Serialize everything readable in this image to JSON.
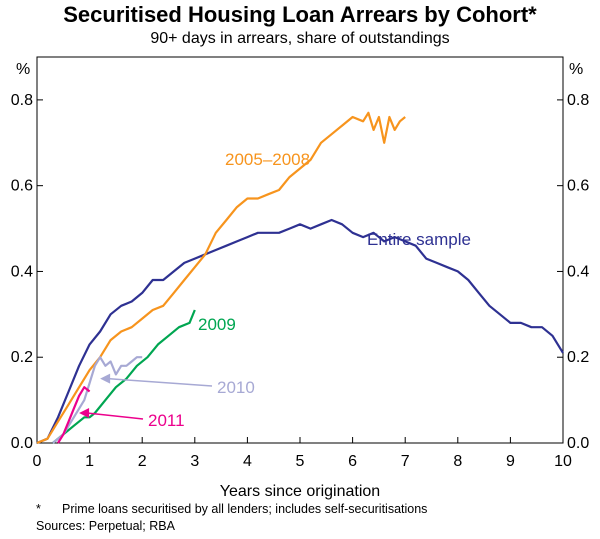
{
  "title": "Securitised Housing Loan Arrears by Cohort*",
  "subtitle": "90+ days in arrears, share of outstandings",
  "footnote": {
    "marker": "*",
    "text": "Prime loans securitised by all lenders; includes self-securitisations"
  },
  "sources": "Sources: Perpetual; RBA",
  "colors": {
    "cohort_2005_2008": "#f7941d",
    "entire_sample": "#2e3192",
    "cohort_2009": "#00a651",
    "cohort_2010": "#a7a9d4",
    "cohort_2011": "#ec008c"
  },
  "chart_data": {
    "type": "line",
    "title": "Securitised Housing Loan Arrears by Cohort*",
    "xlabel": "Years since origination",
    "ylabel_left": "%",
    "ylabel_right": "%",
    "xlim": [
      0,
      10
    ],
    "ylim": [
      0,
      0.9
    ],
    "xticks": [
      "0",
      "1",
      "2",
      "3",
      "4",
      "5",
      "6",
      "7",
      "8",
      "9",
      "10"
    ],
    "yticks": [
      "0.0",
      "0.2",
      "0.4",
      "0.6",
      "0.8"
    ],
    "ytick_values": [
      0,
      0.2,
      0.4,
      0.6,
      0.8
    ],
    "grid": false,
    "series": [
      {
        "name": "Entire sample",
        "label": "Entire sample",
        "color": "#2e3192",
        "x": [
          0,
          0.2,
          0.4,
          0.6,
          0.8,
          1.0,
          1.2,
          1.4,
          1.6,
          1.8,
          2.0,
          2.2,
          2.4,
          2.6,
          2.8,
          3.0,
          3.2,
          3.4,
          3.6,
          3.8,
          4.0,
          4.2,
          4.4,
          4.6,
          4.8,
          5.0,
          5.2,
          5.4,
          5.6,
          5.8,
          6.0,
          6.2,
          6.4,
          6.6,
          6.8,
          7.0,
          7.2,
          7.4,
          7.6,
          7.8,
          8.0,
          8.2,
          8.4,
          8.6,
          8.8,
          9.0,
          9.2,
          9.4,
          9.6,
          9.8,
          10.0
        ],
        "values": [
          0,
          0.01,
          0.06,
          0.12,
          0.18,
          0.23,
          0.26,
          0.3,
          0.32,
          0.33,
          0.35,
          0.38,
          0.38,
          0.4,
          0.42,
          0.43,
          0.44,
          0.45,
          0.46,
          0.47,
          0.48,
          0.49,
          0.49,
          0.49,
          0.5,
          0.51,
          0.5,
          0.51,
          0.52,
          0.51,
          0.49,
          0.48,
          0.49,
          0.47,
          0.48,
          0.47,
          0.46,
          0.43,
          0.42,
          0.41,
          0.4,
          0.38,
          0.35,
          0.32,
          0.3,
          0.28,
          0.28,
          0.27,
          0.27,
          0.25,
          0.21
        ]
      },
      {
        "name": "2005–2008",
        "label": "2005–2008",
        "color": "#f7941d",
        "x": [
          0,
          0.2,
          0.4,
          0.6,
          0.8,
          1.0,
          1.2,
          1.4,
          1.6,
          1.8,
          2.0,
          2.2,
          2.4,
          2.6,
          2.8,
          3.0,
          3.2,
          3.4,
          3.6,
          3.8,
          4.0,
          4.2,
          4.4,
          4.6,
          4.8,
          5.0,
          5.2,
          5.4,
          5.6,
          5.8,
          6.0,
          6.2,
          6.3,
          6.4,
          6.5,
          6.6,
          6.7,
          6.8,
          6.9,
          7.0
        ],
        "values": [
          0,
          0.01,
          0.05,
          0.09,
          0.13,
          0.17,
          0.2,
          0.24,
          0.26,
          0.27,
          0.29,
          0.31,
          0.32,
          0.35,
          0.38,
          0.41,
          0.44,
          0.49,
          0.52,
          0.55,
          0.57,
          0.57,
          0.58,
          0.59,
          0.62,
          0.64,
          0.66,
          0.7,
          0.72,
          0.74,
          0.76,
          0.75,
          0.77,
          0.73,
          0.76,
          0.7,
          0.76,
          0.73,
          0.75,
          0.76
        ]
      },
      {
        "name": "2009",
        "label": "2009",
        "color": "#00a651",
        "x": [
          0.3,
          0.5,
          0.7,
          0.9,
          1.0,
          1.1,
          1.3,
          1.5,
          1.7,
          1.9,
          2.1,
          2.3,
          2.5,
          2.7,
          2.9,
          3.0
        ],
        "values": [
          0,
          0.02,
          0.04,
          0.06,
          0.06,
          0.07,
          0.1,
          0.13,
          0.15,
          0.18,
          0.2,
          0.23,
          0.25,
          0.27,
          0.28,
          0.31
        ]
      },
      {
        "name": "2010",
        "label": "2010",
        "color": "#a7a9d4",
        "x": [
          0.3,
          0.5,
          0.7,
          0.9,
          1.0,
          1.1,
          1.2,
          1.3,
          1.4,
          1.5,
          1.6,
          1.7,
          1.8,
          1.9,
          2.0
        ],
        "values": [
          0,
          0.02,
          0.06,
          0.1,
          0.14,
          0.18,
          0.2,
          0.18,
          0.19,
          0.16,
          0.18,
          0.18,
          0.19,
          0.2,
          0.2
        ]
      },
      {
        "name": "2011",
        "label": "2011",
        "color": "#ec008c",
        "x": [
          0.4,
          0.5,
          0.6,
          0.7,
          0.8,
          0.9,
          1.0
        ],
        "values": [
          0,
          0.02,
          0.05,
          0.08,
          0.11,
          0.13,
          0.12
        ]
      }
    ],
    "annotations": [
      {
        "text": "2005–2008",
        "series": "2005–2008"
      },
      {
        "text": "Entire sample",
        "series": "Entire sample"
      },
      {
        "text": "2009",
        "series": "2009"
      },
      {
        "text": "2010",
        "series": "2010",
        "arrow_to_x": 1.2,
        "arrow_to_y": 0.15
      },
      {
        "text": "2011",
        "series": "2011",
        "arrow_to_x": 0.8,
        "arrow_to_y": 0.07
      }
    ]
  }
}
